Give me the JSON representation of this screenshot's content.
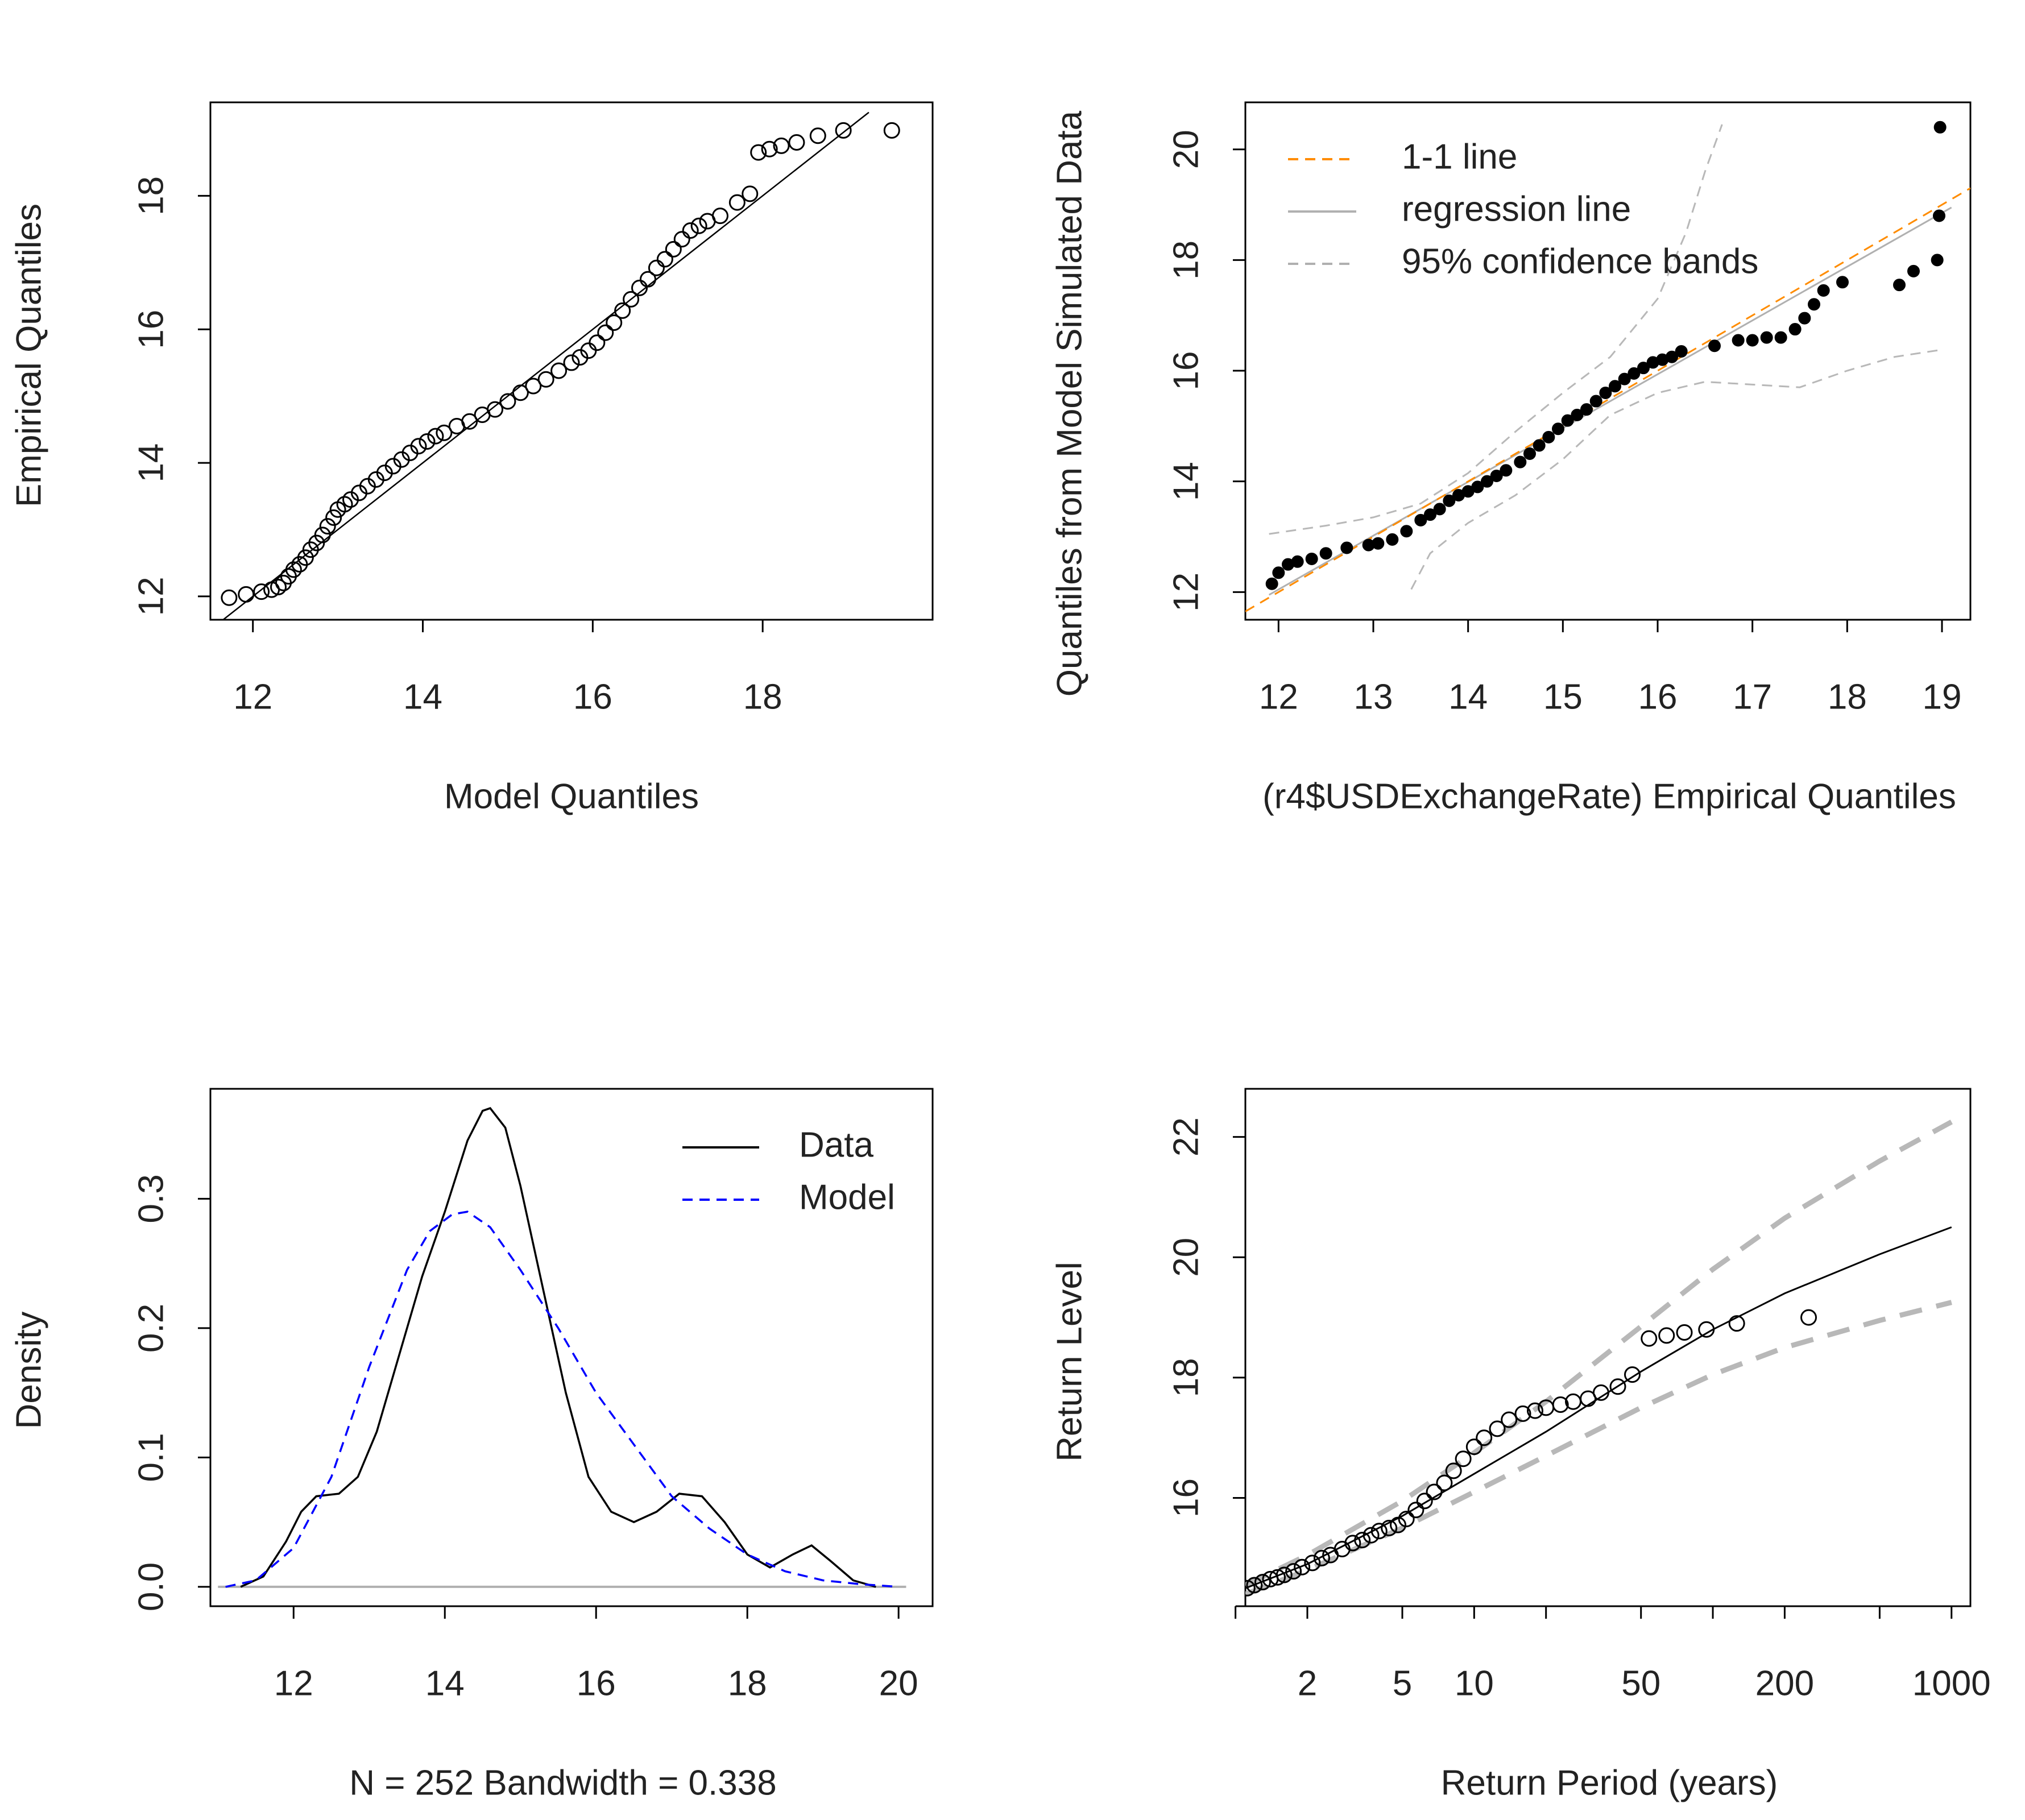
{
  "chart_data": [
    {
      "type": "scatter",
      "id": "qq",
      "xlabel": "Model Quantiles",
      "ylabel": "Empirical Quantiles",
      "xlim": [
        11.5,
        20.0
      ],
      "ylim": [
        11.65,
        19.4
      ],
      "xticks": [
        12,
        14,
        16,
        18
      ],
      "yticks": [
        12,
        14,
        16,
        18
      ],
      "line": {
        "x": [
          11.6,
          19.25
        ],
        "y": [
          11.6,
          19.25
        ]
      },
      "points": {
        "x": [
          11.72,
          11.92,
          12.1,
          12.22,
          12.3,
          12.36,
          12.42,
          12.48,
          12.55,
          12.62,
          12.68,
          12.75,
          12.82,
          12.88,
          12.95,
          13.0,
          13.08,
          13.15,
          13.25,
          13.35,
          13.45,
          13.55,
          13.65,
          13.75,
          13.85,
          13.95,
          14.05,
          14.15,
          14.25,
          14.4,
          14.55,
          14.7,
          14.85,
          15.0,
          15.15,
          15.3,
          15.45,
          15.6,
          15.75,
          15.85,
          15.95,
          16.05,
          16.15,
          16.25,
          16.35,
          16.45,
          16.55,
          16.65,
          16.75,
          16.85,
          16.95,
          17.05,
          17.15,
          17.25,
          17.35,
          17.5,
          17.7,
          17.85,
          17.95,
          18.08,
          18.22,
          18.4,
          18.65,
          18.95,
          19.52
        ],
        "y": [
          11.98,
          12.03,
          12.07,
          12.1,
          12.14,
          12.2,
          12.3,
          12.4,
          12.48,
          12.58,
          12.7,
          12.8,
          12.92,
          13.05,
          13.18,
          13.3,
          13.38,
          13.45,
          13.55,
          13.65,
          13.75,
          13.85,
          13.95,
          14.05,
          14.15,
          14.25,
          14.32,
          14.4,
          14.45,
          14.55,
          14.62,
          14.72,
          14.8,
          14.92,
          15.05,
          15.15,
          15.25,
          15.38,
          15.5,
          15.58,
          15.68,
          15.8,
          15.95,
          16.1,
          16.28,
          16.45,
          16.62,
          16.75,
          16.92,
          17.05,
          17.2,
          17.35,
          17.48,
          17.55,
          17.62,
          17.7,
          17.9,
          18.03,
          18.65,
          18.7,
          18.75,
          18.8,
          18.9,
          18.98,
          18.98
        ]
      }
    },
    {
      "type": "scatter",
      "id": "sim-qq",
      "xlabel": "(r4$USDExchangeRate) Empirical Quantiles",
      "ylabel": "Quantiles from Model Simulated Data",
      "xlim": [
        11.65,
        19.3
      ],
      "ylim": [
        11.5,
        20.85
      ],
      "xticks": [
        12,
        13,
        14,
        15,
        16,
        17,
        18,
        19
      ],
      "yticks": [
        12,
        14,
        16,
        18,
        20
      ],
      "legend": {
        "position": "top-left",
        "entries": [
          {
            "label": "1-1 line",
            "color": "#ff8c00",
            "style": "dashed"
          },
          {
            "label": "regression line",
            "color": "#b0b0b0",
            "style": "solid"
          },
          {
            "label": "95% confidence bands",
            "color": "#b0b0b0",
            "style": "dashed"
          }
        ]
      },
      "one_to_one": {
        "x": [
          11.65,
          19.3
        ],
        "y": [
          11.65,
          19.3
        ]
      },
      "regression": {
        "x": [
          11.9,
          19.1
        ],
        "y": [
          11.95,
          18.95
        ]
      },
      "upper_band": {
        "x": [
          11.9,
          12.5,
          13.0,
          13.5,
          14.0,
          14.5,
          15.0,
          15.5,
          16.0,
          16.3,
          16.5,
          16.68
        ],
        "y": [
          13.05,
          13.2,
          13.35,
          13.6,
          14.15,
          14.9,
          15.6,
          16.25,
          17.3,
          18.5,
          19.6,
          20.45
        ]
      },
      "lower_band": {
        "x": [
          13.4,
          13.6,
          14.0,
          14.5,
          15.0,
          15.5,
          16.0,
          16.5,
          17.0,
          17.5,
          18.0,
          18.5,
          19.0
        ],
        "y": [
          12.05,
          12.7,
          13.25,
          13.75,
          14.4,
          15.2,
          15.6,
          15.8,
          15.75,
          15.7,
          16.0,
          16.25,
          16.38
        ]
      },
      "points": {
        "x": [
          11.93,
          12.0,
          12.1,
          12.2,
          12.35,
          12.5,
          12.72,
          12.95,
          13.05,
          13.2,
          13.35,
          13.5,
          13.6,
          13.7,
          13.8,
          13.9,
          14.0,
          14.1,
          14.2,
          14.3,
          14.4,
          14.55,
          14.65,
          14.75,
          14.85,
          14.95,
          15.05,
          15.15,
          15.25,
          15.35,
          15.45,
          15.55,
          15.65,
          15.75,
          15.85,
          15.95,
          16.05,
          16.15,
          16.25,
          16.6,
          16.85,
          17.0,
          17.15,
          17.3,
          17.45,
          17.55,
          17.65,
          17.75,
          17.95,
          18.55,
          18.7,
          18.95,
          18.97,
          18.98
        ],
        "y": [
          12.15,
          12.35,
          12.5,
          12.55,
          12.6,
          12.7,
          12.8,
          12.85,
          12.88,
          12.95,
          13.1,
          13.3,
          13.4,
          13.5,
          13.65,
          13.75,
          13.82,
          13.9,
          14.0,
          14.1,
          14.2,
          14.35,
          14.5,
          14.65,
          14.8,
          14.95,
          15.1,
          15.2,
          15.3,
          15.45,
          15.6,
          15.72,
          15.85,
          15.95,
          16.05,
          16.15,
          16.2,
          16.25,
          16.35,
          16.45,
          16.55,
          16.55,
          16.6,
          16.6,
          16.75,
          16.95,
          17.2,
          17.45,
          17.6,
          17.55,
          17.8,
          18.0,
          18.8,
          20.4
        ]
      }
    },
    {
      "type": "line",
      "id": "density",
      "xlabel": "N = 252   Bandwidth = 0.338",
      "ylabel": "Density",
      "xlim": [
        10.9,
        20.45
      ],
      "ylim": [
        -0.015,
        0.385
      ],
      "xticks": [
        12,
        14,
        16,
        18,
        20
      ],
      "yticks": [
        0.0,
        0.1,
        0.2,
        0.3
      ],
      "ytick_labels": [
        "0.0",
        "0.1",
        "0.2",
        "0.3"
      ],
      "legend": {
        "position": "top-right",
        "entries": [
          {
            "label": "Data",
            "color": "#000000",
            "style": "solid"
          },
          {
            "label": "Model",
            "color": "#0000ff",
            "style": "dashed"
          }
        ]
      },
      "series": [
        {
          "name": "Data",
          "x": [
            11.3,
            11.6,
            11.9,
            12.1,
            12.3,
            12.6,
            12.85,
            13.1,
            13.4,
            13.7,
            14.0,
            14.3,
            14.5,
            14.6,
            14.8,
            15.0,
            15.3,
            15.6,
            15.9,
            16.2,
            16.5,
            16.8,
            17.1,
            17.4,
            17.7,
            18.0,
            18.3,
            18.6,
            18.85,
            19.1,
            19.4,
            19.7
          ],
          "y": [
            0.0,
            0.008,
            0.035,
            0.058,
            0.07,
            0.072,
            0.085,
            0.12,
            0.18,
            0.24,
            0.29,
            0.345,
            0.368,
            0.37,
            0.355,
            0.31,
            0.23,
            0.15,
            0.085,
            0.058,
            0.05,
            0.058,
            0.072,
            0.07,
            0.05,
            0.025,
            0.015,
            0.025,
            0.032,
            0.02,
            0.005,
            0.0
          ]
        },
        {
          "name": "Model",
          "x": [
            11.1,
            11.5,
            12.0,
            12.5,
            13.0,
            13.5,
            13.8,
            14.1,
            14.3,
            14.6,
            15.0,
            15.5,
            16.0,
            16.5,
            17.0,
            17.5,
            18.0,
            18.5,
            19.0,
            19.5,
            20.0
          ],
          "y": [
            0.0,
            0.005,
            0.03,
            0.085,
            0.17,
            0.245,
            0.275,
            0.288,
            0.29,
            0.278,
            0.245,
            0.2,
            0.15,
            0.11,
            0.07,
            0.045,
            0.025,
            0.012,
            0.005,
            0.002,
            0.0
          ]
        }
      ],
      "baseline": 0.0
    },
    {
      "type": "scatter",
      "id": "return-level",
      "xlabel": "Return Period (years)",
      "ylabel": "Return Level",
      "xscale": "log",
      "xlim": [
        1.1,
        1200
      ],
      "ylim": [
        14.2,
        22.8
      ],
      "xticks": [
        2,
        5,
        10,
        50,
        200,
        1000
      ],
      "xminor_ticks": [
        1,
        20,
        100,
        500
      ],
      "yticks": [
        16,
        18,
        20,
        22
      ],
      "fit": {
        "x": [
          1.1,
          2,
          5,
          10,
          20,
          50,
          100,
          200,
          500,
          1000
        ],
        "y": [
          14.5,
          14.9,
          15.7,
          16.4,
          17.1,
          18.1,
          18.8,
          19.4,
          20.05,
          20.5
        ]
      },
      "upper_ci": {
        "x": [
          1.1,
          2,
          5,
          10,
          20,
          50,
          100,
          200,
          500,
          1000
        ],
        "y": [
          14.55,
          15.05,
          15.95,
          16.75,
          17.6,
          18.85,
          19.8,
          20.65,
          21.6,
          22.25
        ]
      },
      "lower_ci": {
        "x": [
          1.1,
          2,
          5,
          10,
          20,
          50,
          100,
          200,
          500,
          1000
        ],
        "y": [
          14.4,
          14.8,
          15.5,
          16.1,
          16.7,
          17.5,
          18.05,
          18.5,
          18.95,
          19.25
        ]
      },
      "points": {
        "x": [
          1.12,
          1.2,
          1.3,
          1.4,
          1.5,
          1.6,
          1.75,
          1.9,
          2.1,
          2.3,
          2.5,
          2.8,
          3.1,
          3.4,
          3.7,
          4.0,
          4.4,
          4.8,
          5.2,
          5.7,
          6.2,
          6.8,
          7.5,
          8.2,
          9.0,
          10.0,
          11.0,
          12.5,
          14.0,
          16.0,
          18.0,
          20.0,
          23.0,
          26.0,
          30.0,
          34.0,
          40.0,
          46.0,
          54.0,
          64.0,
          76.0,
          94.0,
          126.0,
          252.0
        ],
        "y": [
          14.5,
          14.55,
          14.6,
          14.65,
          14.68,
          14.72,
          14.78,
          14.85,
          14.92,
          15.0,
          15.05,
          15.15,
          15.25,
          15.3,
          15.38,
          15.45,
          15.5,
          15.55,
          15.65,
          15.8,
          15.95,
          16.1,
          16.25,
          16.45,
          16.65,
          16.85,
          17.0,
          17.15,
          17.3,
          17.4,
          17.45,
          17.5,
          17.55,
          17.6,
          17.65,
          17.75,
          17.85,
          18.05,
          18.65,
          18.7,
          18.75,
          18.8,
          18.9,
          19.0
        ]
      }
    }
  ]
}
